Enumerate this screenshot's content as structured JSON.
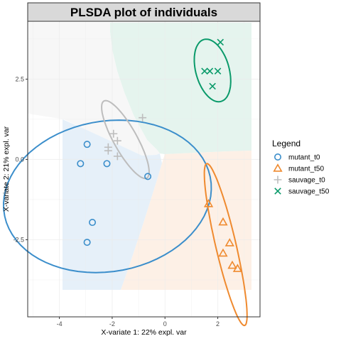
{
  "chart_data": {
    "type": "scatter",
    "title": "PLSDA plot of individuals",
    "xlabel": "X-variate 1: 22% expl. var",
    "ylabel": "X-variate 2: 21% expl. var",
    "xlim": [
      -5.2,
      3.6
    ],
    "ylim": [
      -4.9,
      4.3
    ],
    "x_ticks": [
      -4,
      -2,
      0,
      2
    ],
    "x_tick_labels": [
      "-4",
      "-2",
      "0",
      "2"
    ],
    "y_ticks": [
      -2.5,
      0,
      2.5
    ],
    "y_tick_labels": [
      "-2.5",
      "0.0",
      "2.5"
    ],
    "grid": true,
    "legend": {
      "title": "Legend",
      "position": "right"
    },
    "series": [
      {
        "name": "mutant_t0",
        "marker": "circle",
        "color": "#3b8ecb",
        "region_color": "#e6f0f9",
        "points": [
          [
            -2.95,
            0.47
          ],
          [
            -3.2,
            -0.13
          ],
          [
            -2.2,
            -0.13
          ],
          [
            -0.65,
            -0.53
          ],
          [
            -2.75,
            -1.96
          ],
          [
            -2.95,
            -2.58
          ]
        ],
        "ellipse": {
          "cx": -2.18,
          "cy": -1.15,
          "rx": 2.35,
          "ry": 3.95,
          "angle": -84
        }
      },
      {
        "name": "mutant_t50",
        "marker": "triangle",
        "color": "#ef8a2f",
        "region_color": "#fdf0e6",
        "points": [
          [
            1.65,
            -1.38
          ],
          [
            2.2,
            -1.95
          ],
          [
            2.45,
            -2.6
          ],
          [
            2.2,
            -2.92
          ],
          [
            2.55,
            -3.3
          ],
          [
            2.75,
            -3.4
          ]
        ],
        "ellipse": {
          "cx": 2.3,
          "cy": -2.65,
          "rx": 0.38,
          "ry": 2.62,
          "angle": 16
        }
      },
      {
        "name": "sauvage_t0",
        "marker": "plus",
        "color": "#bdbdbd",
        "region_color": "#f7f7f7",
        "points": [
          [
            -1.95,
            0.8
          ],
          [
            -1.8,
            0.58
          ],
          [
            -2.15,
            0.38
          ],
          [
            -2.15,
            0.27
          ],
          [
            -1.8,
            0.1
          ],
          [
            -0.85,
            1.3
          ]
        ],
        "ellipse": {
          "cx": -1.5,
          "cy": 0.62,
          "rx": 0.42,
          "ry": 1.45,
          "angle": 35
        }
      },
      {
        "name": "sauvage_t50",
        "marker": "cross",
        "color": "#0a9a6a",
        "region_color": "#e5f4ee",
        "points": [
          [
            2.1,
            3.65
          ],
          [
            1.5,
            2.75
          ],
          [
            1.7,
            2.75
          ],
          [
            2.0,
            2.75
          ],
          [
            1.8,
            2.28
          ]
        ],
        "ellipse": {
          "cx": 1.8,
          "cy": 2.77,
          "rx": 0.62,
          "ry": 1.02,
          "angle": 22
        }
      }
    ]
  }
}
